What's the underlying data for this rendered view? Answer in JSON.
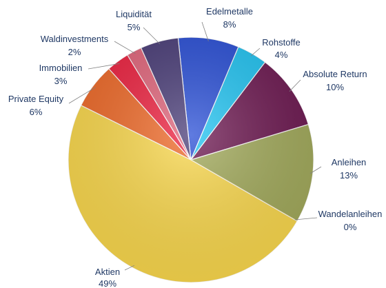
{
  "chart_data": {
    "type": "pie",
    "title": "",
    "slices": [
      {
        "name": "Edelmetalle",
        "label": "8%",
        "value": 8,
        "color": "#2a4fd6"
      },
      {
        "name": "Rohstoffe",
        "label": "4%",
        "value": 4,
        "color": "#22c4f2"
      },
      {
        "name": "Absolute Return",
        "label": "10%",
        "value": 10,
        "color": "#6e1a52"
      },
      {
        "name": "Anleihen",
        "label": "13%",
        "value": 13,
        "color": "#a3ab5c"
      },
      {
        "name": "Wandelanleihen",
        "label": "0%",
        "value": 0,
        "color": "#c9b54a"
      },
      {
        "name": "Aktien",
        "label": "49%",
        "value": 49,
        "color": "#fbd94e"
      },
      {
        "name": "Private Equity",
        "label": "6%",
        "value": 6,
        "color": "#f06b2a"
      },
      {
        "name": "Immobilien",
        "label": "3%",
        "value": 3,
        "color": "#ee2341"
      },
      {
        "name": "Waldinvestments",
        "label": "2%",
        "value": 2,
        "color": "#e2667c"
      },
      {
        "name": "Liquidität",
        "label": "5%",
        "value": 5,
        "color": "#4a3d78"
      }
    ]
  }
}
